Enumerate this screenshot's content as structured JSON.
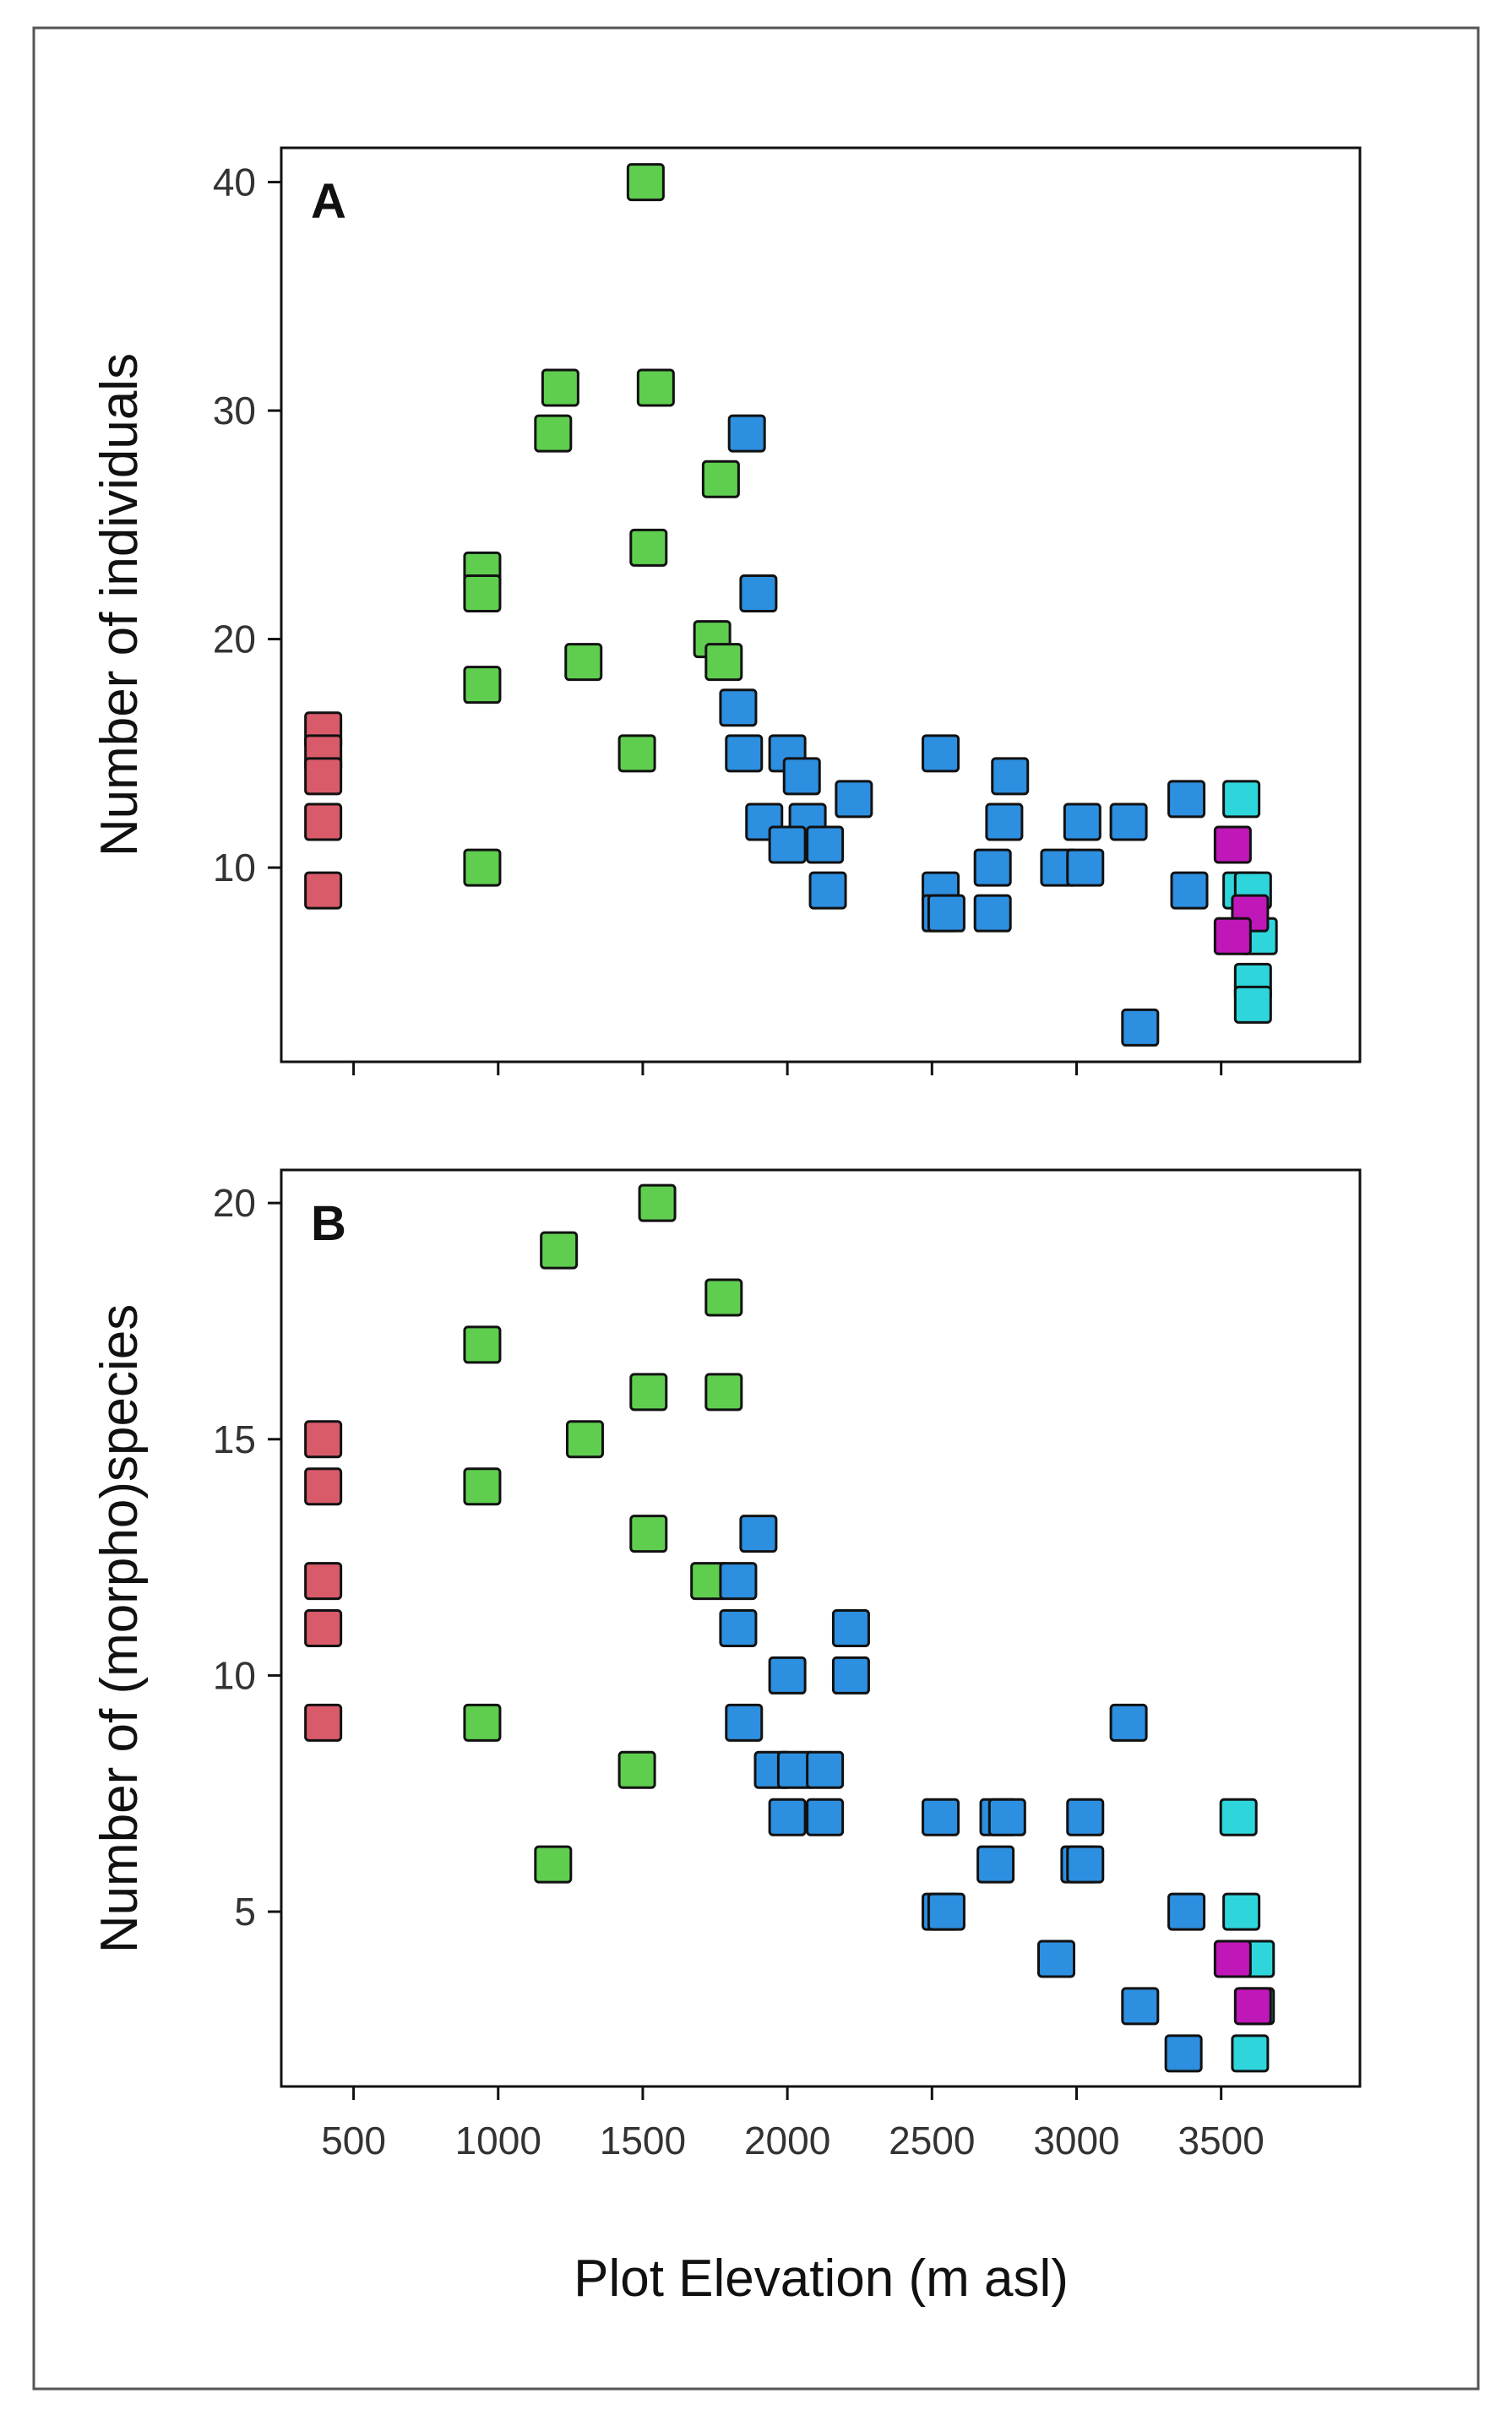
{
  "figure": {
    "xlabel": "Plot Elevation (m asl)",
    "x_ticks": [
      "500",
      "1000",
      "1500",
      "2000",
      "2500",
      "3000",
      "3500"
    ],
    "colors": {
      "red": "#d95b6a",
      "green": "#5fce4f",
      "blue": "#2d8fe0",
      "cyan": "#2ed6dc",
      "magenta": "#c017b8"
    }
  },
  "chart_data": [
    {
      "type": "scatter",
      "panel": "A",
      "xlabel": "",
      "ylabel": "Number of individuals",
      "xlim": [
        250,
        3980
      ],
      "ylim": [
        1.5,
        41.5
      ],
      "x_ticks": [
        500,
        1000,
        1500,
        2000,
        2500,
        3000,
        3500
      ],
      "y_ticks": [
        10,
        20,
        30,
        40
      ],
      "y_tick_labels": [
        "10",
        "20",
        "30",
        "40"
      ],
      "series": [
        {
          "name": "red",
          "color": "#d95b6a",
          "points": [
            [
              395,
              16
            ],
            [
              395,
              15
            ],
            [
              395,
              14
            ],
            [
              395,
              12
            ],
            [
              395,
              9
            ]
          ]
        },
        {
          "name": "green",
          "color": "#5fce4f",
          "points": [
            [
              1510,
              40
            ],
            [
              1215,
              31
            ],
            [
              1545,
              31
            ],
            [
              1190,
              29
            ],
            [
              1770,
              27
            ],
            [
              1520,
              24
            ],
            [
              945,
              23
            ],
            [
              945,
              22
            ],
            [
              1740,
              20
            ],
            [
              1780,
              19
            ],
            [
              1295,
              19
            ],
            [
              945,
              18
            ],
            [
              1480,
              15
            ],
            [
              945,
              10
            ]
          ]
        },
        {
          "name": "blue",
          "color": "#2d8fe0",
          "points": [
            [
              1860,
              29
            ],
            [
              1900,
              22
            ],
            [
              1830,
              17
            ],
            [
              1850,
              15
            ],
            [
              2000,
              15
            ],
            [
              2050,
              14
            ],
            [
              2230,
              13
            ],
            [
              1920,
              12
            ],
            [
              2070,
              12
            ],
            [
              2000,
              11
            ],
            [
              2130,
              11
            ],
            [
              2140,
              9
            ],
            [
              2530,
              15
            ],
            [
              2770,
              14
            ],
            [
              2750,
              12
            ],
            [
              3020,
              12
            ],
            [
              3180,
              12
            ],
            [
              3380,
              13
            ],
            [
              2710,
              10
            ],
            [
              2940,
              10
            ],
            [
              3030,
              10
            ],
            [
              2530,
              9
            ],
            [
              2530,
              8
            ],
            [
              2550,
              8
            ],
            [
              2710,
              8
            ],
            [
              3390,
              9
            ],
            [
              3220,
              3
            ]
          ]
        },
        {
          "name": "cyan",
          "color": "#2ed6dc",
          "points": [
            [
              3570,
              13
            ],
            [
              3570,
              9
            ],
            [
              3610,
              9
            ],
            [
              3630,
              7
            ],
            [
              3610,
              5
            ],
            [
              3610,
              4
            ]
          ]
        },
        {
          "name": "magenta",
          "color": "#c017b8",
          "points": [
            [
              3540,
              11
            ],
            [
              3600,
              8
            ],
            [
              3540,
              7
            ]
          ]
        }
      ]
    },
    {
      "type": "scatter",
      "panel": "B",
      "xlabel": "Plot Elevation (m asl)",
      "ylabel": "Number of (morpho)species",
      "xlim": [
        250,
        3980
      ],
      "ylim": [
        1.3,
        20.7
      ],
      "x_ticks": [
        500,
        1000,
        1500,
        2000,
        2500,
        3000,
        3500
      ],
      "y_ticks": [
        5,
        10,
        15,
        20
      ],
      "y_tick_labels": [
        "5",
        "10",
        "15",
        "20"
      ],
      "series": [
        {
          "name": "red",
          "color": "#d95b6a",
          "points": [
            [
              395,
              15
            ],
            [
              395,
              14
            ],
            [
              395,
              12
            ],
            [
              395,
              11
            ],
            [
              395,
              9
            ]
          ]
        },
        {
          "name": "green",
          "color": "#5fce4f",
          "points": [
            [
              1550,
              20
            ],
            [
              1210,
              19
            ],
            [
              1780,
              18
            ],
            [
              945,
              17
            ],
            [
              1520,
              16
            ],
            [
              1780,
              16
            ],
            [
              1300,
              15
            ],
            [
              945,
              14
            ],
            [
              1520,
              13
            ],
            [
              1730,
              12
            ],
            [
              945,
              9
            ],
            [
              1480,
              8
            ],
            [
              1190,
              6
            ]
          ]
        },
        {
          "name": "blue",
          "color": "#2d8fe0",
          "points": [
            [
              1900,
              13
            ],
            [
              1830,
              12
            ],
            [
              1830,
              11
            ],
            [
              2220,
              11
            ],
            [
              2000,
              10
            ],
            [
              2220,
              10
            ],
            [
              1850,
              9
            ],
            [
              1950,
              8
            ],
            [
              2030,
              8
            ],
            [
              2130,
              8
            ],
            [
              2000,
              7
            ],
            [
              2130,
              7
            ],
            [
              2530,
              7
            ],
            [
              2730,
              7
            ],
            [
              2760,
              7
            ],
            [
              3030,
              7
            ],
            [
              3180,
              9
            ],
            [
              2530,
              5
            ],
            [
              2550,
              5
            ],
            [
              2720,
              6
            ],
            [
              3010,
              6
            ],
            [
              3030,
              6
            ],
            [
              3380,
              5
            ],
            [
              2930,
              4
            ],
            [
              3220,
              3
            ],
            [
              3370,
              2
            ]
          ]
        },
        {
          "name": "cyan",
          "color": "#2ed6dc",
          "points": [
            [
              3560,
              7
            ],
            [
              3570,
              5
            ],
            [
              3620,
              4
            ],
            [
              3620,
              3
            ],
            [
              3600,
              2
            ]
          ]
        },
        {
          "name": "magenta",
          "color": "#c017b8",
          "points": [
            [
              3540,
              4
            ],
            [
              3610,
              3
            ]
          ]
        }
      ]
    }
  ]
}
